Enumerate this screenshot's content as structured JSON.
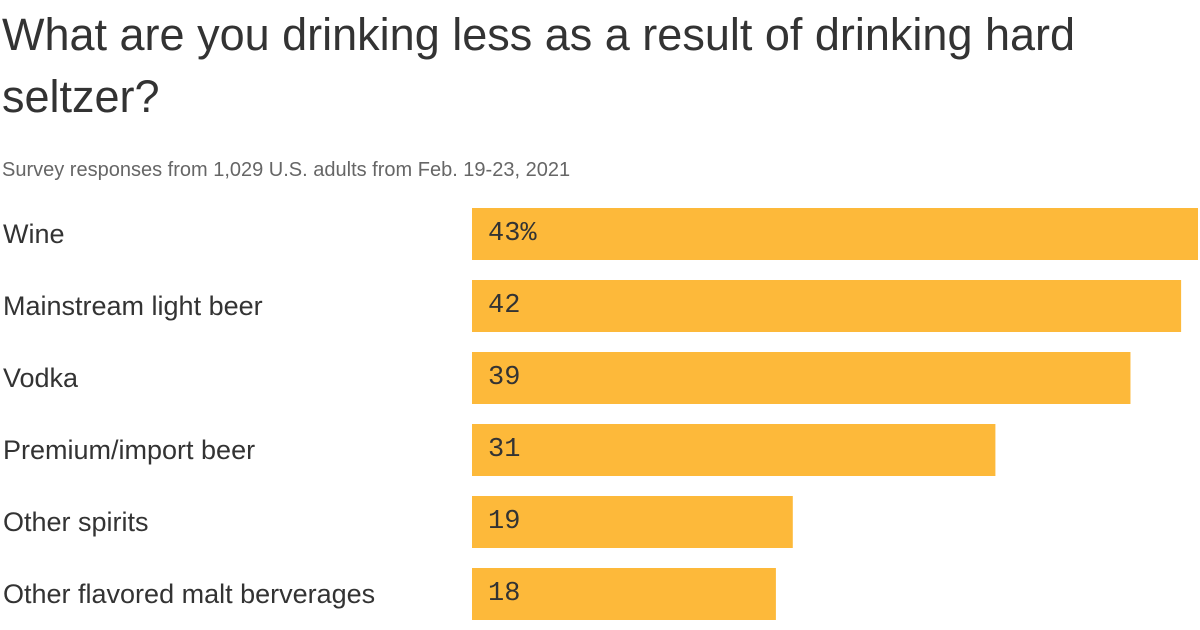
{
  "chart_data": {
    "type": "bar",
    "orientation": "horizontal",
    "title": "What are you drinking less as a result of drinking hard seltzer?",
    "subtitle": "Survey responses from 1,029 U.S. adults from Feb. 19-23, 2021",
    "categories": [
      "Wine",
      "Mainstream light beer",
      "Vodka",
      "Premium/import beer",
      "Other spirits",
      "Other flavored malt berverages"
    ],
    "values": [
      43,
      42,
      39,
      31,
      19,
      18
    ],
    "value_labels": [
      "43%",
      "42",
      "39",
      "31",
      "19",
      "18"
    ],
    "unit": "%",
    "xlim": [
      0,
      43
    ],
    "grid": false,
    "legend": "none",
    "bar_color": "#FDB93A"
  }
}
